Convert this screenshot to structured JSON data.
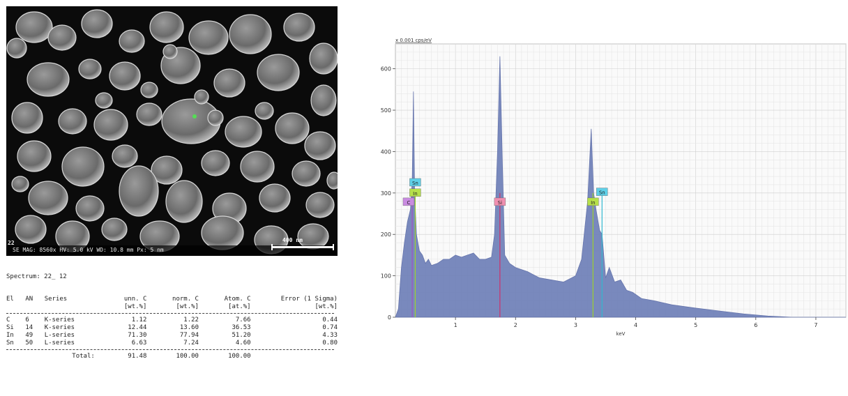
{
  "sem": {
    "info_line": "SE MAG: 8560x  HV: 5.0 kV  WD: 10.8 mm  Px: 5 nm",
    "panel_number": "22",
    "scale_label": "400 nm"
  },
  "spectrum_title": "Spectrum: 22_ 12",
  "table": {
    "header1": [
      "El",
      "AN",
      "Series",
      "unn. C",
      "norm. C",
      "Atom. C",
      "Error (1 Sigma)"
    ],
    "header2": [
      "",
      "",
      "",
      "[wt.%]",
      "[wt.%]",
      "[at.%]",
      "[wt.%]"
    ],
    "rows": [
      [
        "C",
        "6",
        "K-series",
        "1.12",
        "1.22",
        "7.66",
        "0.44"
      ],
      [
        "Si",
        "14",
        "K-series",
        "12.44",
        "13.60",
        "36.53",
        "0.74"
      ],
      [
        "In",
        "49",
        "L-series",
        "71.30",
        "77.94",
        "51.20",
        "4.33"
      ],
      [
        "Sn",
        "50",
        "L-series",
        "6.63",
        "7.24",
        "4.60",
        "0.80"
      ]
    ],
    "total_label": "Total:",
    "total_values": [
      "91.48",
      "100.00",
      "100.00"
    ]
  },
  "chart_data": {
    "type": "line",
    "title": "x 0.001 cps/eV",
    "xlabel": "keV",
    "ylabel": "",
    "xlim": [
      0,
      7.5
    ],
    "ylim": [
      0,
      660
    ],
    "x_ticks": [
      1,
      2,
      3,
      4,
      5,
      6,
      7
    ],
    "y_ticks": [
      0,
      100,
      200,
      300,
      400,
      500,
      600
    ],
    "grid": true,
    "series": [
      {
        "x": [
          0.0,
          0.05,
          0.1,
          0.15,
          0.2,
          0.25,
          0.28,
          0.3,
          0.32,
          0.35,
          0.4,
          0.45,
          0.5,
          0.55,
          0.6,
          0.7,
          0.8,
          0.9,
          1.0,
          1.1,
          1.2,
          1.3,
          1.4,
          1.5,
          1.6,
          1.65,
          1.7,
          1.74,
          1.78,
          1.82,
          1.9,
          2.0,
          2.2,
          2.4,
          2.6,
          2.8,
          3.0,
          3.1,
          3.2,
          3.26,
          3.3,
          3.34,
          3.4,
          3.44,
          3.5,
          3.56,
          3.65,
          3.75,
          3.85,
          3.95,
          4.1,
          4.3,
          4.6,
          5.0,
          5.4,
          5.8,
          6.2,
          6.6,
          7.0,
          7.5
        ],
        "values": [
          0,
          20,
          120,
          180,
          230,
          260,
          330,
          545,
          300,
          200,
          160,
          150,
          130,
          140,
          125,
          130,
          140,
          140,
          150,
          145,
          150,
          155,
          140,
          140,
          145,
          200,
          400,
          630,
          380,
          150,
          130,
          120,
          110,
          95,
          90,
          85,
          100,
          140,
          280,
          455,
          300,
          260,
          210,
          200,
          95,
          120,
          85,
          90,
          65,
          60,
          45,
          40,
          30,
          22,
          15,
          8,
          3,
          0,
          0,
          0
        ]
      }
    ],
    "peak_labels": [
      {
        "text": "Sn",
        "x": 0.33,
        "y": 325,
        "color": "#5fd0e8"
      },
      {
        "text": "In",
        "x": 0.33,
        "y": 300,
        "color": "#b6e04a"
      },
      {
        "text": "C",
        "x": 0.22,
        "y": 278,
        "color": "#c98be0"
      },
      {
        "text": "Si",
        "x": 1.74,
        "y": 278,
        "color": "#f08fb0"
      },
      {
        "text": "In",
        "x": 3.29,
        "y": 278,
        "color": "#b6e04a"
      },
      {
        "text": "Sn",
        "x": 3.44,
        "y": 302,
        "color": "#5fd0e8"
      }
    ],
    "marker_lines": [
      {
        "x": 0.28,
        "color": "#a050c0"
      },
      {
        "x": 0.33,
        "color": "#9cd030"
      },
      {
        "x": 1.74,
        "color": "#d0306a"
      },
      {
        "x": 3.29,
        "color": "#9cd030"
      },
      {
        "x": 3.44,
        "color": "#30b8d0"
      }
    ],
    "fill_color": "#6f80b8"
  }
}
